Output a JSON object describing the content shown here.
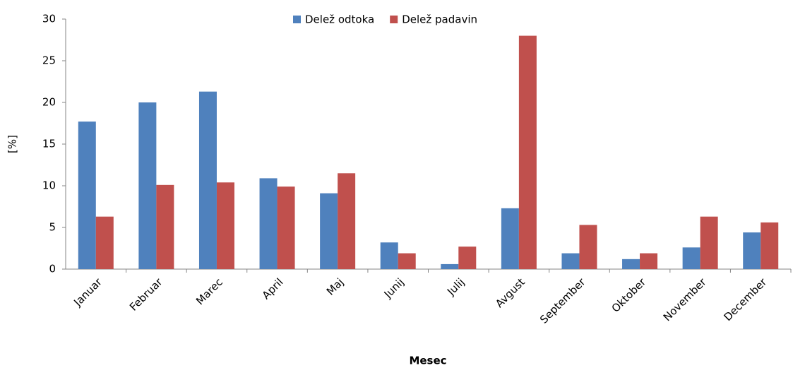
{
  "chart_data": {
    "type": "bar",
    "x_label": "Mesec",
    "y_label": "[%]",
    "categories": [
      "Januar",
      "Februar",
      "Marec",
      "April",
      "Maj",
      "Junij",
      "Julij",
      "Avgust",
      "September",
      "Oktober",
      "November",
      "December"
    ],
    "series": [
      {
        "name": "Delež odtoka",
        "color": "#4f81bd",
        "values": [
          17.7,
          20.0,
          21.3,
          10.9,
          9.1,
          3.2,
          0.6,
          7.3,
          1.9,
          1.2,
          2.6,
          4.4
        ]
      },
      {
        "name": "Delež padavin",
        "color": "#c0504d",
        "values": [
          6.3,
          10.1,
          10.4,
          9.9,
          11.5,
          1.9,
          2.7,
          28.0,
          5.3,
          1.9,
          6.3,
          5.6
        ]
      }
    ],
    "ylim": [
      0,
      30
    ],
    "yticks": [
      0,
      5,
      10,
      15,
      20,
      25,
      30
    ],
    "grid": false,
    "legend": "top"
  }
}
